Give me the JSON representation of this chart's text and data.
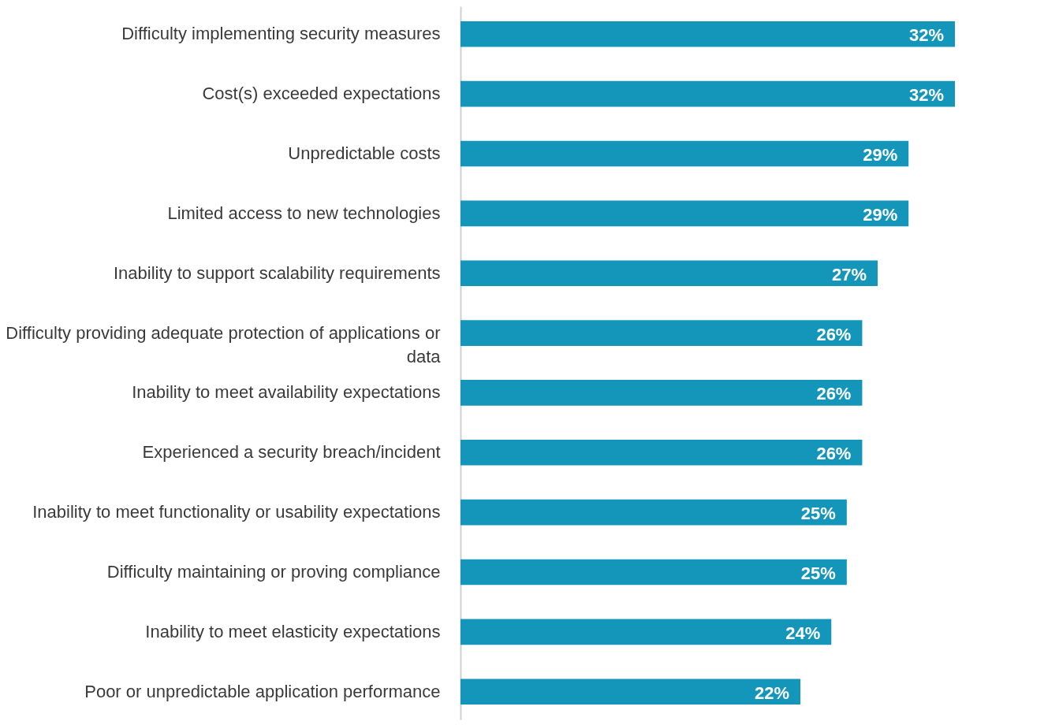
{
  "chart_data": {
    "type": "bar",
    "orientation": "horizontal",
    "categories": [
      "Difficulty implementing security measures",
      "Cost(s) exceeded expectations",
      "Unpredictable costs",
      "Limited access to new technologies",
      "Inability to support scalability requirements",
      "Difficulty providing adequate protection of applications or data",
      "Inability to meet availability expectations",
      "Experienced a security breach/incident",
      "Inability to meet functionality or usability expectations",
      "Difficulty maintaining or proving compliance",
      "Inability to meet elasticity expectations",
      "Poor or unpredictable application performance"
    ],
    "values": [
      32,
      32,
      29,
      29,
      27,
      26,
      26,
      26,
      25,
      25,
      24,
      22
    ],
    "value_labels": [
      "32%",
      "32%",
      "29%",
      "29%",
      "27%",
      "26%",
      "26%",
      "26%",
      "25%",
      "25%",
      "24%",
      "22%"
    ],
    "color": "#1496bb",
    "grid": false
  }
}
